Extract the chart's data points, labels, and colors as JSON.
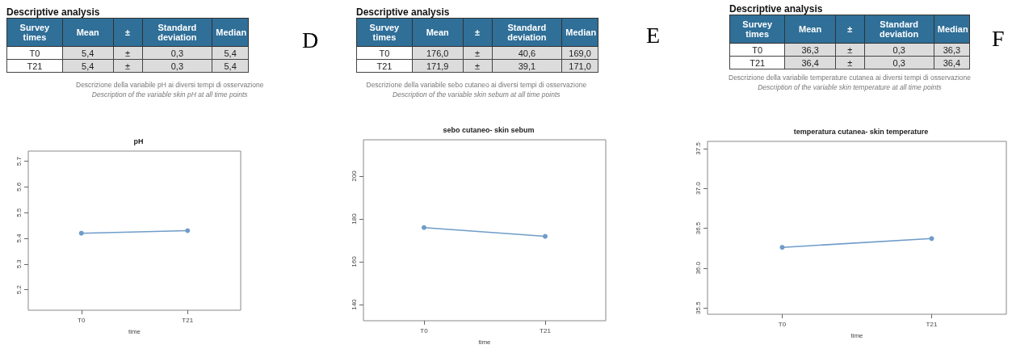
{
  "chart_data": [
    {
      "type": "other",
      "title": "Descriptive analysis",
      "categories": [
        "Survey times",
        "Mean",
        "±",
        "Standard deviation",
        "Median"
      ],
      "cell_labels": [
        [
          "T0",
          "5,4",
          "±",
          "0,3",
          "5,4"
        ],
        [
          "T21",
          "5,4",
          "±",
          "0,3",
          "5,4"
        ]
      ],
      "annotations": [
        "Descrizione della variabile pH ai diversi tempi di osservazione",
        "Description of the variable skin pH at all time points",
        "D"
      ]
    },
    {
      "type": "other",
      "title": "Descriptive analysis",
      "categories": [
        "Survey times",
        "Mean",
        "±",
        "Standard deviation",
        "Median"
      ],
      "cell_labels": [
        [
          "T0",
          "176,0",
          "±",
          "40,6",
          "169,0"
        ],
        [
          "T21",
          "171,9",
          "±",
          "39,1",
          "171,0"
        ]
      ],
      "annotations": [
        "Descrizione della variabile sebo cutaneo ai diversi tempi di osservazione",
        "Description of the variable skin sebum at all time points",
        "E"
      ]
    },
    {
      "type": "other",
      "title": "Descriptive analysis",
      "categories": [
        "Survey times",
        "Mean",
        "±",
        "Standard deviation",
        "Median"
      ],
      "cell_labels": [
        [
          "T0",
          "36,3",
          "±",
          "0,3",
          "36,3"
        ],
        [
          "T21",
          "36,4",
          "±",
          "0,3",
          "36,4"
        ]
      ],
      "annotations": [
        "Descrizione della variabile temperature cutanea ai diversi tempi di osservazione",
        "Description of the variable skin temperature at all time points",
        "F"
      ]
    },
    {
      "type": "line",
      "title": "pH",
      "xlabel": "time",
      "categories": [
        "T0",
        "T21"
      ],
      "values": [
        5.42,
        5.43
      ],
      "color": "#6f9cc9",
      "ylim": [
        5.12,
        5.74
      ],
      "yticks": [
        5.2,
        5.3,
        5.4,
        5.5,
        5.6,
        5.7
      ],
      "marker": "circle"
    },
    {
      "type": "line",
      "title": "sebo cutaneo- skin sebum",
      "xlabel": "time",
      "categories": [
        "T0",
        "T21"
      ],
      "values": [
        176.0,
        171.9
      ],
      "color": "#6f9cc9",
      "ylim": [
        132.5,
        217
      ],
      "yticks": [
        140,
        160,
        180,
        200
      ],
      "marker": "circle"
    },
    {
      "type": "line",
      "title": "temperatura cutanea- skin temperature",
      "xlabel": "time",
      "categories": [
        "T0",
        "T21"
      ],
      "values": [
        36.26,
        36.37
      ],
      "color": "#6f9cc9",
      "ylim": [
        35.42,
        37.59
      ],
      "yticks": [
        35.5,
        {
          "value": 36.0,
          "label": "36.0"
        },
        36.5,
        {
          "value": 37.0,
          "label": "37.0"
        },
        37.5
      ],
      "marker": "circle"
    }
  ]
}
